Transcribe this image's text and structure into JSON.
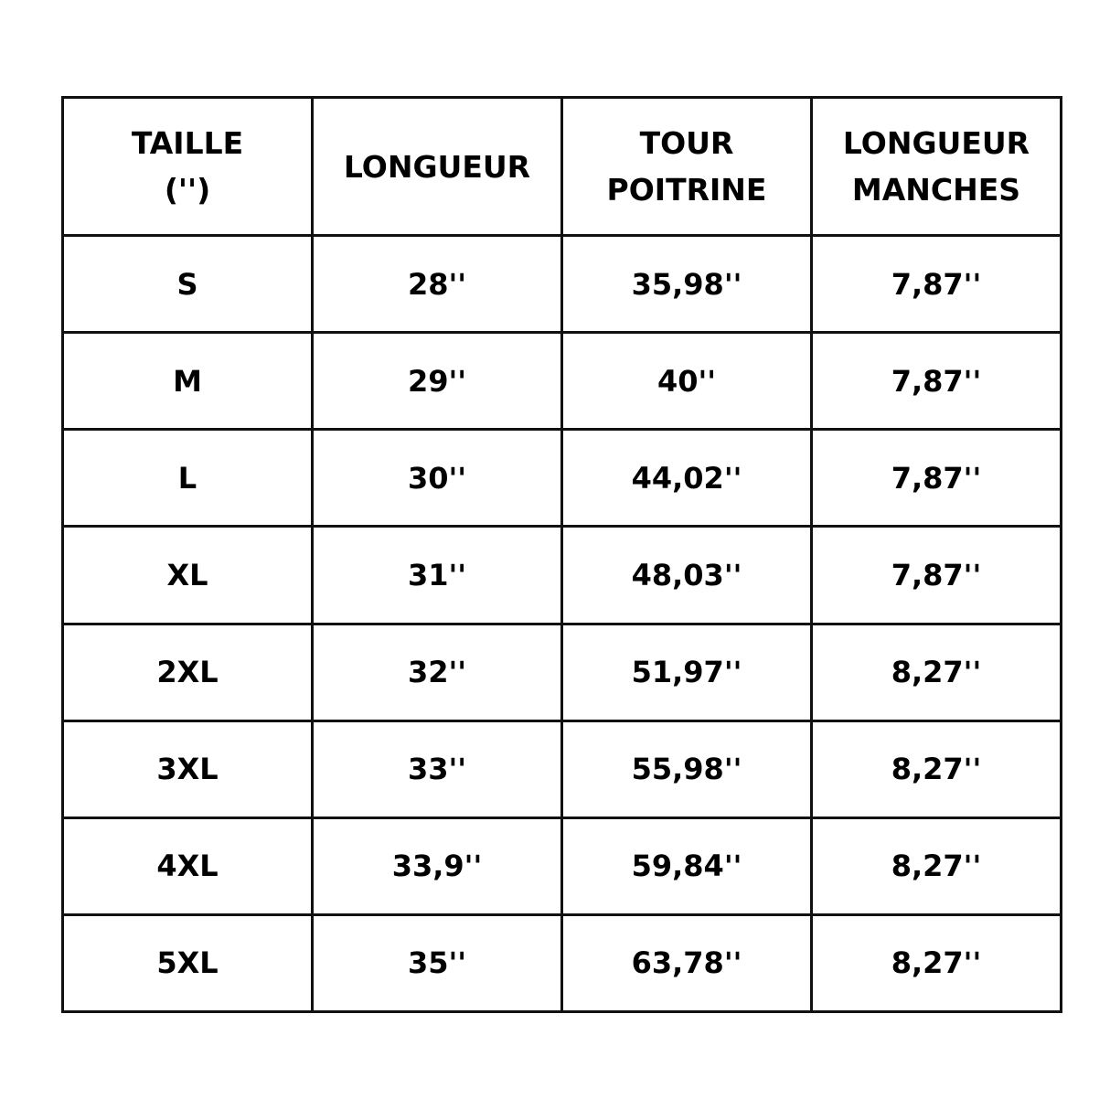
{
  "table": {
    "headers": [
      [
        "TAILLE",
        "('')"
      ],
      [
        "LONGUEUR"
      ],
      [
        "TOUR",
        "POITRINE"
      ],
      [
        "LONGUEUR",
        "MANCHES"
      ]
    ],
    "rows": [
      [
        "S",
        "28''",
        "35,98''",
        "7,87''"
      ],
      [
        "M",
        "29''",
        "40''",
        "7,87''"
      ],
      [
        "L",
        "30''",
        "44,02''",
        "7,87''"
      ],
      [
        "XL",
        "31''",
        "48,03''",
        "7,87''"
      ],
      [
        "2XL",
        "32''",
        "51,97''",
        "8,27''"
      ],
      [
        "3XL",
        "33''",
        "55,98''",
        "8,27''"
      ],
      [
        "4XL",
        "33,9''",
        "59,84''",
        "8,27''"
      ],
      [
        "5XL",
        "35''",
        "63,78''",
        "8,27''"
      ]
    ]
  }
}
